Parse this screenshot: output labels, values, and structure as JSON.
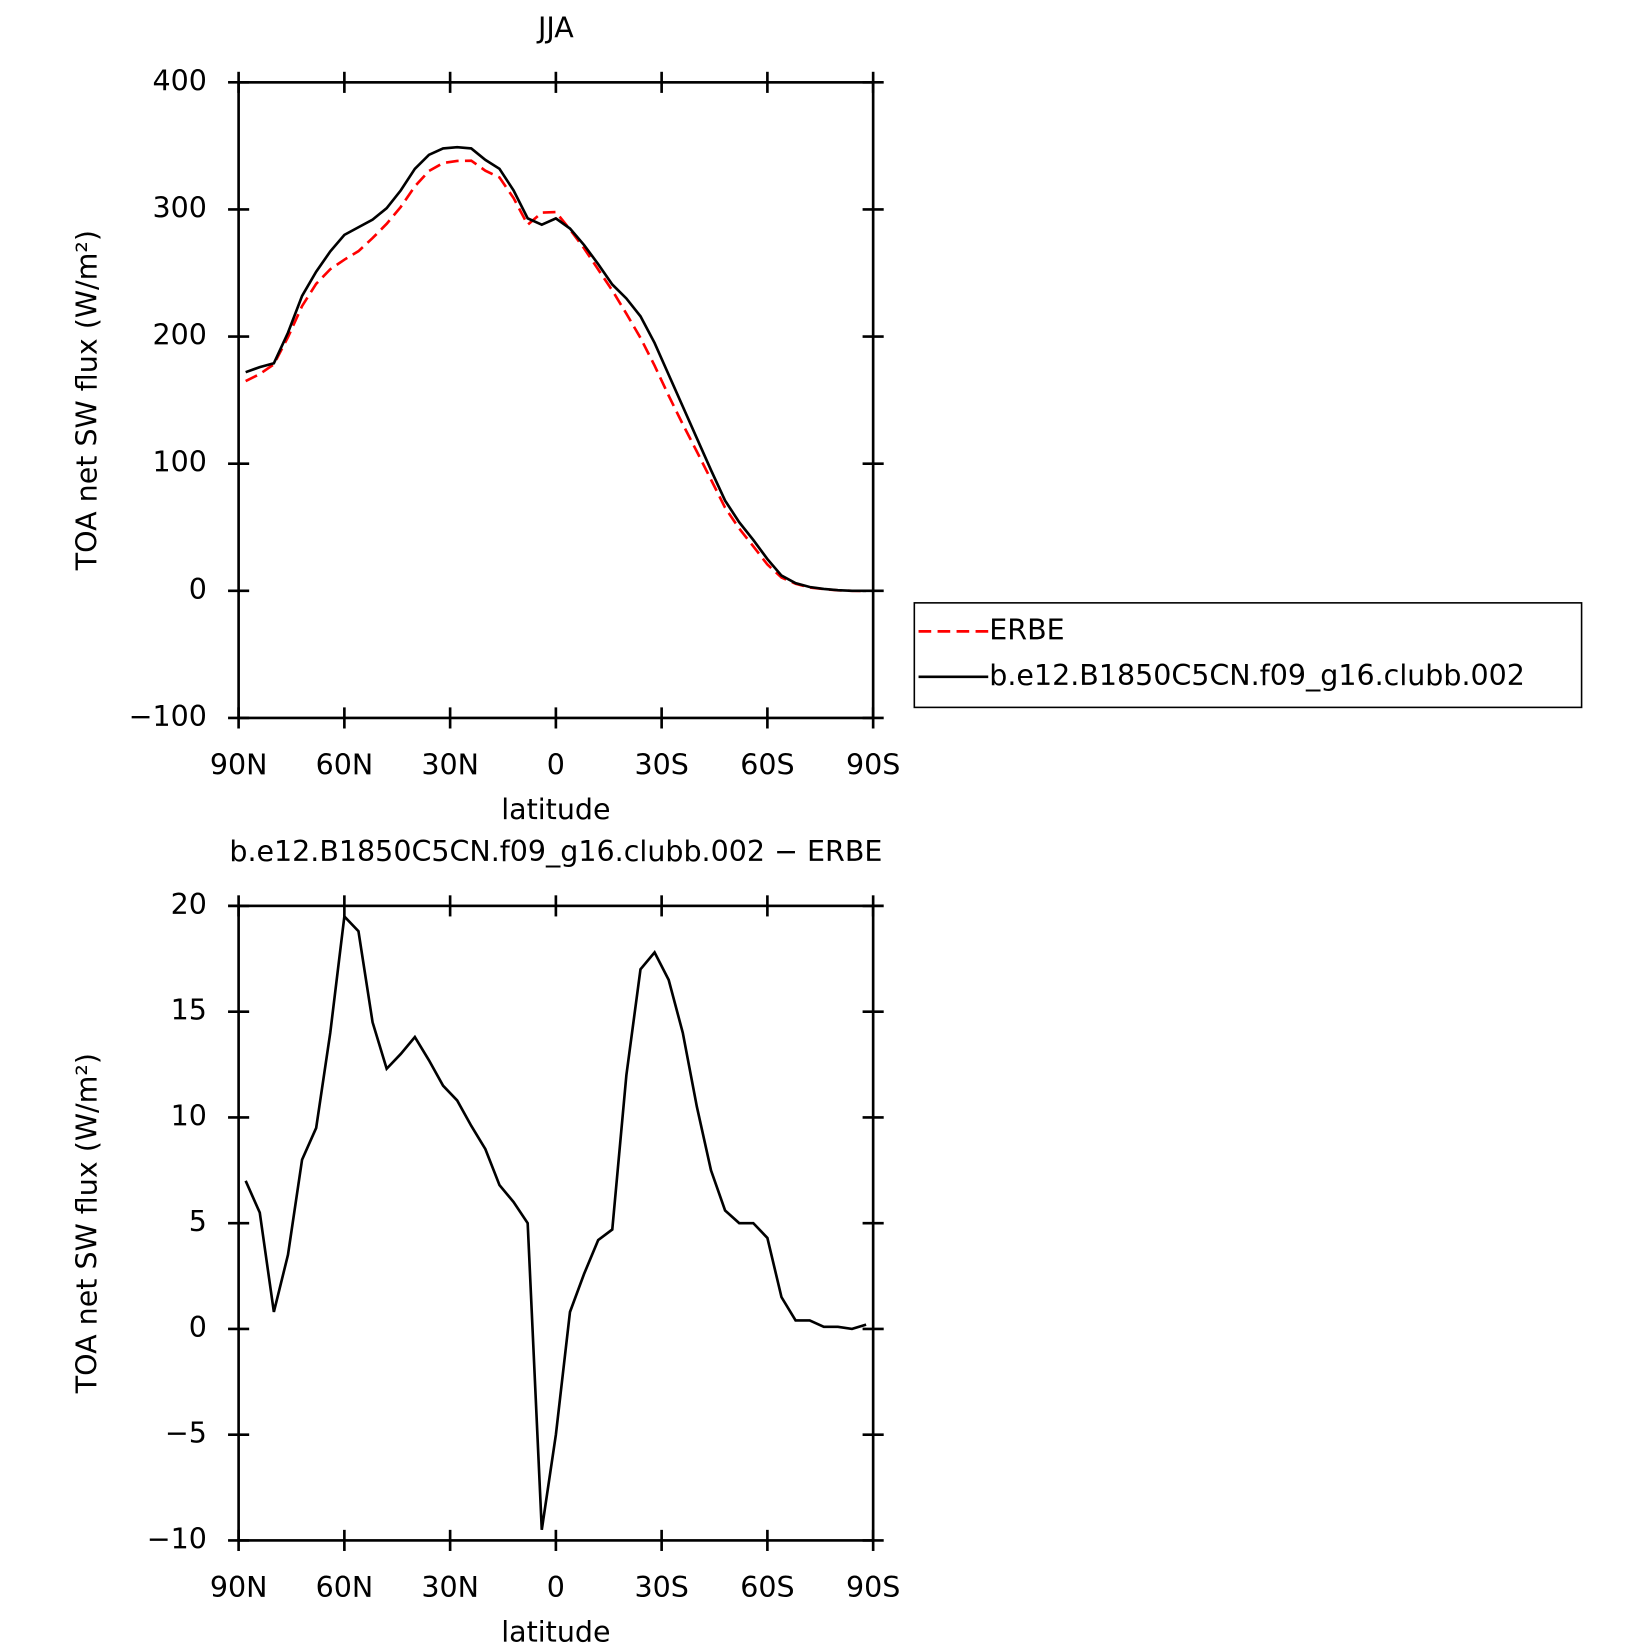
{
  "chart_data": [
    {
      "type": "line",
      "title": "JJA",
      "xlabel": "latitude",
      "ylabel": "TOA net SW flux (W/m²)",
      "x": [
        88,
        84,
        80,
        76,
        72,
        68,
        64,
        60,
        56,
        52,
        48,
        44,
        40,
        36,
        32,
        28,
        24,
        20,
        16,
        12,
        8,
        4,
        0,
        -4,
        -8,
        -12,
        -16,
        -20,
        -24,
        -28,
        -32,
        -36,
        -40,
        -44,
        -48,
        -52,
        -56,
        -60,
        -64,
        -68,
        -72,
        -76,
        -80,
        -84,
        -88
      ],
      "series": [
        {
          "name": "ERBE",
          "color": "#ff0000",
          "dashed": true,
          "values": [
            165,
            170.5,
            178.2,
            199.5,
            224,
            241.5,
            253,
            260.5,
            267.2,
            277.5,
            288.7,
            302,
            318.2,
            330.3,
            336.5,
            338.2,
            338.4,
            330.5,
            325.2,
            309,
            288,
            297.5,
            298,
            284.2,
            269.4,
            252.8,
            236.3,
            218,
            199,
            177.2,
            153.5,
            131,
            109.5,
            87.5,
            65.4,
            49,
            35,
            20.7,
            10.5,
            5.6,
            2.6,
            1.4,
            0.4,
            0,
            -0.2
          ]
        },
        {
          "name": "b.e12.B1850C5CN.f09_g16.clubb.002",
          "color": "#000000",
          "dashed": false,
          "values": [
            172,
            176,
            179,
            203,
            232,
            251,
            267,
            280,
            286,
            292,
            301,
            315,
            332,
            343,
            348,
            349,
            348,
            339,
            332,
            315,
            293,
            288,
            293,
            285,
            272,
            257,
            241,
            230,
            216,
            195,
            170,
            145,
            120,
            95,
            71,
            54,
            40,
            25,
            12,
            6,
            3,
            1.5,
            0.5,
            0,
            0
          ]
        }
      ],
      "xlim": [
        90,
        -90
      ],
      "xticks": [
        {
          "value": 90,
          "label": "90N"
        },
        {
          "value": 60,
          "label": "60N"
        },
        {
          "value": 30,
          "label": "30N"
        },
        0,
        {
          "value": -30,
          "label": "30S"
        },
        {
          "value": -60,
          "label": "60S"
        },
        {
          "value": -90,
          "label": "90S"
        }
      ],
      "ylim": [
        -100,
        400
      ],
      "yticks": [
        {
          "value": -100,
          "label": "−100"
        },
        0,
        100,
        200,
        300,
        400
      ],
      "legend": "right"
    },
    {
      "type": "line",
      "title": "b.e12.B1850C5CN.f09_g16.clubb.002 − ERBE",
      "xlabel": "latitude",
      "ylabel": "TOA net SW flux (W/m²)",
      "x": [
        88,
        84,
        80,
        76,
        72,
        68,
        64,
        60,
        56,
        52,
        48,
        44,
        40,
        36,
        32,
        28,
        24,
        20,
        16,
        12,
        8,
        4,
        0,
        -4,
        -8,
        -12,
        -16,
        -20,
        -24,
        -28,
        -32,
        -36,
        -40,
        -44,
        -48,
        -52,
        -56,
        -60,
        -64,
        -68,
        -72,
        -76,
        -80,
        -84,
        -88
      ],
      "series": [
        {
          "color": "#000000",
          "dashed": false,
          "values": [
            7.0,
            5.5,
            0.8,
            3.5,
            8.0,
            9.5,
            14,
            19.5,
            18.8,
            14.5,
            12.3,
            13,
            13.8,
            12.7,
            11.5,
            10.8,
            9.6,
            8.5,
            6.8,
            6.0,
            5.0,
            -9.5,
            -5,
            0.8,
            2.6,
            4.2,
            4.7,
            12,
            17,
            17.8,
            16.5,
            14,
            10.5,
            7.5,
            5.6,
            5.0,
            5.0,
            4.3,
            1.5,
            0.4,
            0.4,
            0.1,
            0.1,
            0.0,
            0.2
          ]
        }
      ],
      "xlim": [
        90,
        -90
      ],
      "xticks": [
        {
          "value": 90,
          "label": "90N"
        },
        {
          "value": 60,
          "label": "60N"
        },
        {
          "value": 30,
          "label": "30N"
        },
        0,
        {
          "value": -30,
          "label": "30S"
        },
        {
          "value": -60,
          "label": "60S"
        },
        {
          "value": -90,
          "label": "90S"
        }
      ],
      "ylim": [
        -10,
        20
      ],
      "yticks": [
        {
          "value": -10,
          "label": "−10"
        },
        {
          "value": -5,
          "label": "−5"
        },
        0,
        5,
        10,
        15,
        20
      ]
    }
  ]
}
